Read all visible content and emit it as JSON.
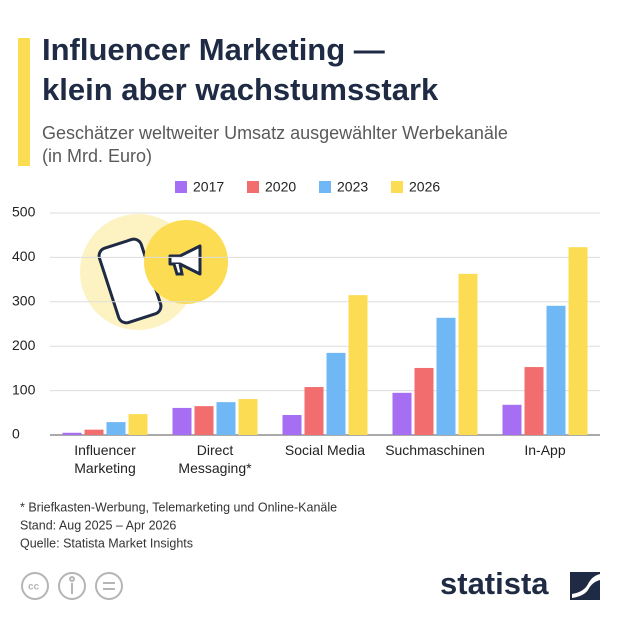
{
  "chart_data": {
    "type": "bar",
    "title": [
      "Influencer Marketing —",
      "klein aber wachstumsstark"
    ],
    "subtitle": [
      "Geschätzer weltweiter Umsatz ausgewählter Werbekanäle",
      "(in Mrd. Euro)"
    ],
    "categories": [
      "Influencer Marketing",
      "Direct Messaging*",
      "Social Media",
      "Suchmaschinen",
      "In-App"
    ],
    "series": [
      {
        "name": "2017",
        "color": "#a66ef2",
        "values": [
          5,
          61,
          45,
          95,
          68
        ]
      },
      {
        "name": "2020",
        "color": "#f26d6d",
        "values": [
          12,
          65,
          108,
          151,
          153
        ]
      },
      {
        "name": "2023",
        "color": "#6fb8f5",
        "values": [
          29,
          74,
          185,
          264,
          291
        ]
      },
      {
        "name": "2026",
        "color": "#fbdc52",
        "values": [
          47,
          81,
          315,
          363,
          423
        ]
      }
    ],
    "ylim": [
      0,
      500
    ],
    "yticks": [
      0,
      100,
      200,
      300,
      400,
      500
    ],
    "grid": true,
    "annotations": [
      "* Briefkasten-Werbung, Telemarketing und Online-Kanäle",
      "Stand: Aug 2025 – Apr 2026",
      "Quelle: Statista Market Insights"
    ],
    "brand": "statista"
  }
}
